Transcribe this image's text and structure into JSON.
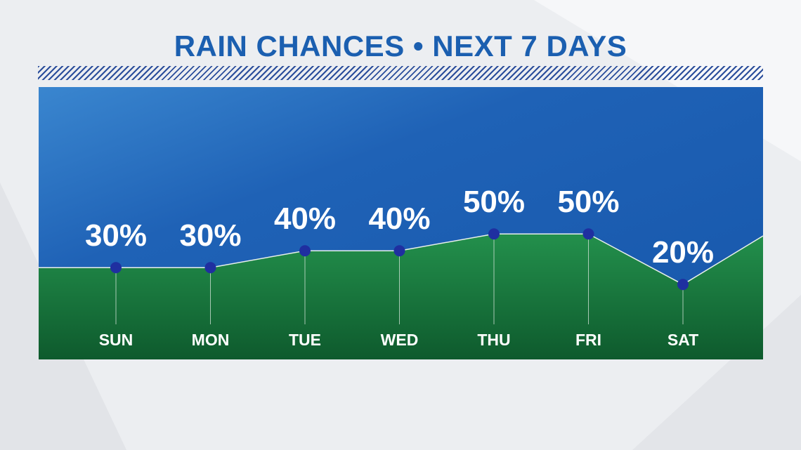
{
  "title": "RAIN CHANCES • NEXT 7 DAYS",
  "colors": {
    "title": "#1b5fb0",
    "sky_top": "#2a72c4",
    "sky_bottom": "#1c5eb4",
    "ground_top": "#208a48",
    "ground_bottom": "#0f5a2e",
    "marker": "#1f2fa0",
    "line": "#e8f0ea"
  },
  "chart_data": {
    "type": "area",
    "title": "RAIN CHANCES • NEXT 7 DAYS",
    "categories": [
      "SUN",
      "MON",
      "TUE",
      "WED",
      "THU",
      "FRI",
      "SAT"
    ],
    "values": [
      30,
      30,
      40,
      40,
      50,
      50,
      20
    ],
    "value_labels": [
      "30%",
      "30%",
      "40%",
      "40%",
      "50%",
      "50%",
      "20%"
    ],
    "unit": "%",
    "ylim": [
      0,
      100
    ],
    "grid": false,
    "legend": "none"
  }
}
